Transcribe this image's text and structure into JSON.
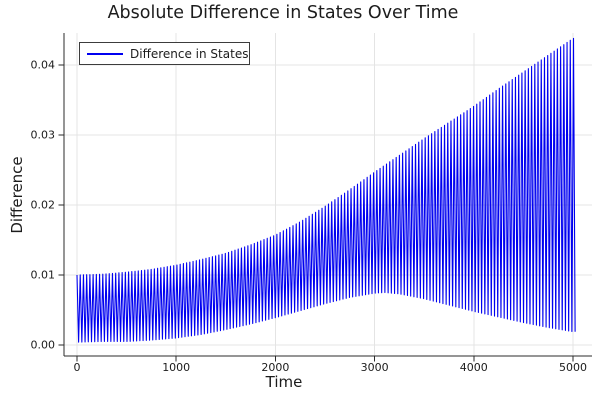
{
  "chart_data": {
    "type": "line",
    "title": "Absolute Difference in States Over Time",
    "xlabel": "Time",
    "ylabel": "Difference",
    "xlim": [
      0,
      5000
    ],
    "ylim": [
      0.0,
      0.044
    ],
    "grid": true,
    "legend_position": "top-left",
    "x_ticks": {
      "values": [
        0,
        1000,
        2000,
        3000,
        4000,
        5000
      ],
      "labels": [
        "0",
        "1000",
        "2000",
        "3000",
        "4000",
        "5000"
      ]
    },
    "y_ticks": {
      "values": [
        0.0,
        0.01,
        0.02,
        0.03,
        0.04
      ],
      "labels": [
        "0.00",
        "0.01",
        "0.02",
        "0.03",
        "0.04"
      ]
    },
    "series": [
      {
        "name": "Difference in States",
        "color": "#0000f0",
        "waveform": "dense-triangle-oscillation",
        "oscillation_period": 32.5,
        "upper_envelope": [
          [
            0,
            0.01
          ],
          [
            250,
            0.0101
          ],
          [
            500,
            0.0104
          ],
          [
            750,
            0.0108
          ],
          [
            1000,
            0.0114
          ],
          [
            1250,
            0.0122
          ],
          [
            1500,
            0.0131
          ],
          [
            1750,
            0.0143
          ],
          [
            2000,
            0.0157
          ],
          [
            2250,
            0.0176
          ],
          [
            2500,
            0.0198
          ],
          [
            2750,
            0.0222
          ],
          [
            3000,
            0.0247
          ],
          [
            3250,
            0.0271
          ],
          [
            3500,
            0.0295
          ],
          [
            3750,
            0.0318
          ],
          [
            4000,
            0.0341
          ],
          [
            4250,
            0.0366
          ],
          [
            4500,
            0.039
          ],
          [
            4750,
            0.0414
          ],
          [
            5000,
            0.0438
          ]
        ],
        "lower_envelope": [
          [
            0,
            0.0004
          ],
          [
            250,
            0.0005
          ],
          [
            500,
            0.0005
          ],
          [
            750,
            0.0007
          ],
          [
            1000,
            0.001
          ],
          [
            1250,
            0.0015
          ],
          [
            1500,
            0.0022
          ],
          [
            1750,
            0.003
          ],
          [
            2000,
            0.0039
          ],
          [
            2250,
            0.0049
          ],
          [
            2500,
            0.0059
          ],
          [
            2750,
            0.0068
          ],
          [
            3000,
            0.0074
          ],
          [
            3100,
            0.0075
          ],
          [
            3250,
            0.0073
          ],
          [
            3500,
            0.0066
          ],
          [
            3750,
            0.0057
          ],
          [
            4000,
            0.0048
          ],
          [
            4250,
            0.004
          ],
          [
            4500,
            0.0032
          ],
          [
            4750,
            0.0025
          ],
          [
            5000,
            0.0019
          ]
        ]
      }
    ]
  },
  "colors": {
    "background": "#ffffff",
    "grid": "#e4e4e4",
    "axis": "#2b2b2b",
    "text": "#1c1c1c",
    "legend_border": "#3c3c3c"
  }
}
